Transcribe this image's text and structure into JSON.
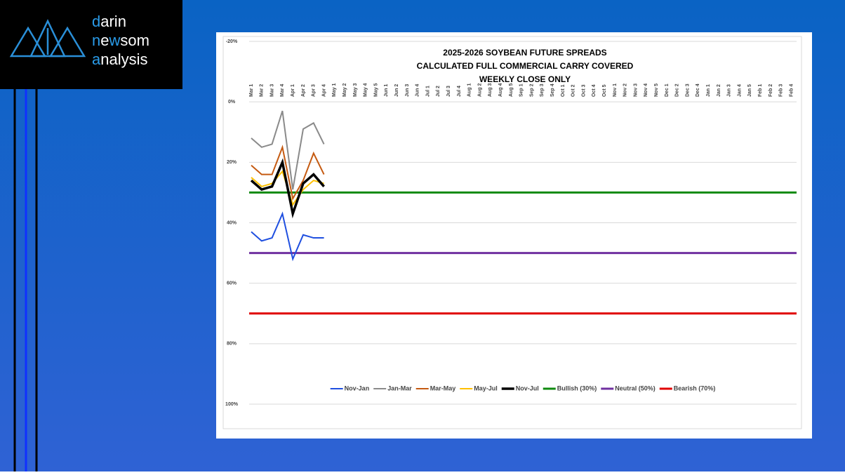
{
  "logo": {
    "lines": [
      [
        "d",
        "arin"
      ],
      [
        "n",
        "e",
        "w",
        "som"
      ],
      [
        "a",
        "nalysis"
      ]
    ]
  },
  "chart_data": {
    "type": "line",
    "title": [
      "2025-2026 SOYBEAN FUTURE SPREADS",
      "CALCULATED FULL COMMERCIAL CARRY COVERED",
      "WEEKLY CLOSE ONLY"
    ],
    "categories": [
      "Mar 1",
      "Mar 2",
      "Mar 3",
      "Mar 4",
      "Apr 1",
      "Apr 2",
      "Apr 3",
      "Apr 4",
      "May 1",
      "May 2",
      "May 3",
      "May 4",
      "May 5",
      "Jun 1",
      "Jun 2",
      "Jun 3",
      "Jun 4",
      "Jul 1",
      "Jul 2",
      "Jul 3",
      "Jul 4",
      "Aug 1",
      "Aug 2",
      "Aug 3",
      "Aug 4",
      "Aug 5",
      "Sep 1",
      "Sep 2",
      "Sep 3",
      "Sep 4",
      "Oct 1",
      "Oct 2",
      "Oct 3",
      "Oct 4",
      "Oct 5",
      "Nov 1",
      "Nov 2",
      "Nov 3",
      "Nov 4",
      "Nov 5",
      "Dec 1",
      "Dec 2",
      "Dec 3",
      "Dec 4",
      "Jan 1",
      "Jan 2",
      "Jan 3",
      "Jan 4",
      "Jan 5",
      "Feb 1",
      "Feb 2",
      "Feb 3",
      "Feb 4"
    ],
    "series": [
      {
        "name": "Nov-Jan",
        "color": "#1f4fe0",
        "width": 2,
        "values": [
          43,
          46,
          45,
          37,
          52,
          44,
          45,
          45,
          null,
          null,
          null,
          null,
          null,
          null,
          null,
          null,
          null,
          null,
          null,
          null,
          null,
          null,
          null,
          null,
          null,
          null,
          null,
          null,
          null,
          null,
          null,
          null,
          null,
          null,
          null,
          null,
          null,
          null,
          null,
          null,
          null,
          null,
          null,
          null,
          null,
          null,
          null,
          null,
          null,
          null,
          null,
          null,
          null
        ]
      },
      {
        "name": "Jan-Mar",
        "color": "#8a8a8a",
        "width": 2,
        "values": [
          12,
          15,
          14,
          3,
          29,
          9,
          7,
          14,
          null,
          null,
          null,
          null,
          null,
          null,
          null,
          null,
          null,
          null,
          null,
          null,
          null,
          null,
          null,
          null,
          null,
          null,
          null,
          null,
          null,
          null,
          null,
          null,
          null,
          null,
          null,
          null,
          null,
          null,
          null,
          null,
          null,
          null,
          null,
          null,
          null,
          null,
          null,
          null,
          null,
          null,
          null,
          null,
          null
        ]
      },
      {
        "name": "Mar-May",
        "color": "#c55a11",
        "width": 2,
        "values": [
          21,
          24,
          24,
          15,
          32,
          26,
          17,
          24,
          null,
          null,
          null,
          null,
          null,
          null,
          null,
          null,
          null,
          null,
          null,
          null,
          null,
          null,
          null,
          null,
          null,
          null,
          null,
          null,
          null,
          null,
          null,
          null,
          null,
          null,
          null,
          null,
          null,
          null,
          null,
          null,
          null,
          null,
          null,
          null,
          null,
          null,
          null,
          null,
          null,
          null,
          null,
          null,
          null
        ]
      },
      {
        "name": "May-Jul",
        "color": "#ffc000",
        "width": 2,
        "values": [
          25,
          28,
          27,
          23,
          34,
          29,
          26,
          27,
          null,
          null,
          null,
          null,
          null,
          null,
          null,
          null,
          null,
          null,
          null,
          null,
          null,
          null,
          null,
          null,
          null,
          null,
          null,
          null,
          null,
          null,
          null,
          null,
          null,
          null,
          null,
          null,
          null,
          null,
          null,
          null,
          null,
          null,
          null,
          null,
          null,
          null,
          null,
          null,
          null,
          null,
          null,
          null,
          null
        ]
      },
      {
        "name": "Nov-Jul",
        "color": "#000000",
        "width": 3.5,
        "values": [
          26,
          29,
          28,
          20,
          37,
          27,
          24,
          28,
          null,
          null,
          null,
          null,
          null,
          null,
          null,
          null,
          null,
          null,
          null,
          null,
          null,
          null,
          null,
          null,
          null,
          null,
          null,
          null,
          null,
          null,
          null,
          null,
          null,
          null,
          null,
          null,
          null,
          null,
          null,
          null,
          null,
          null,
          null,
          null,
          null,
          null,
          null,
          null,
          null,
          null,
          null,
          null,
          null
        ]
      }
    ],
    "hlines": [
      {
        "name": "Bullish (30%)",
        "color": "#0f8a0f",
        "value": 30
      },
      {
        "name": "Neutral (50%)",
        "color": "#7030a0",
        "value": 50
      },
      {
        "name": "Bearish (70%)",
        "color": "#e00000",
        "value": 70
      }
    ],
    "ylim": [
      -20,
      100
    ],
    "y_inverted": true,
    "yticks": [
      {
        "value": -20,
        "label": "-20%"
      },
      {
        "value": 0,
        "label": "0%"
      },
      {
        "value": 20,
        "label": "20%"
      },
      {
        "value": 40,
        "label": "40%"
      },
      {
        "value": 60,
        "label": "60%"
      },
      {
        "value": 80,
        "label": "80%"
      },
      {
        "value": 100,
        "label": "100%"
      }
    ],
    "grid": true,
    "legend": "bottom"
  }
}
